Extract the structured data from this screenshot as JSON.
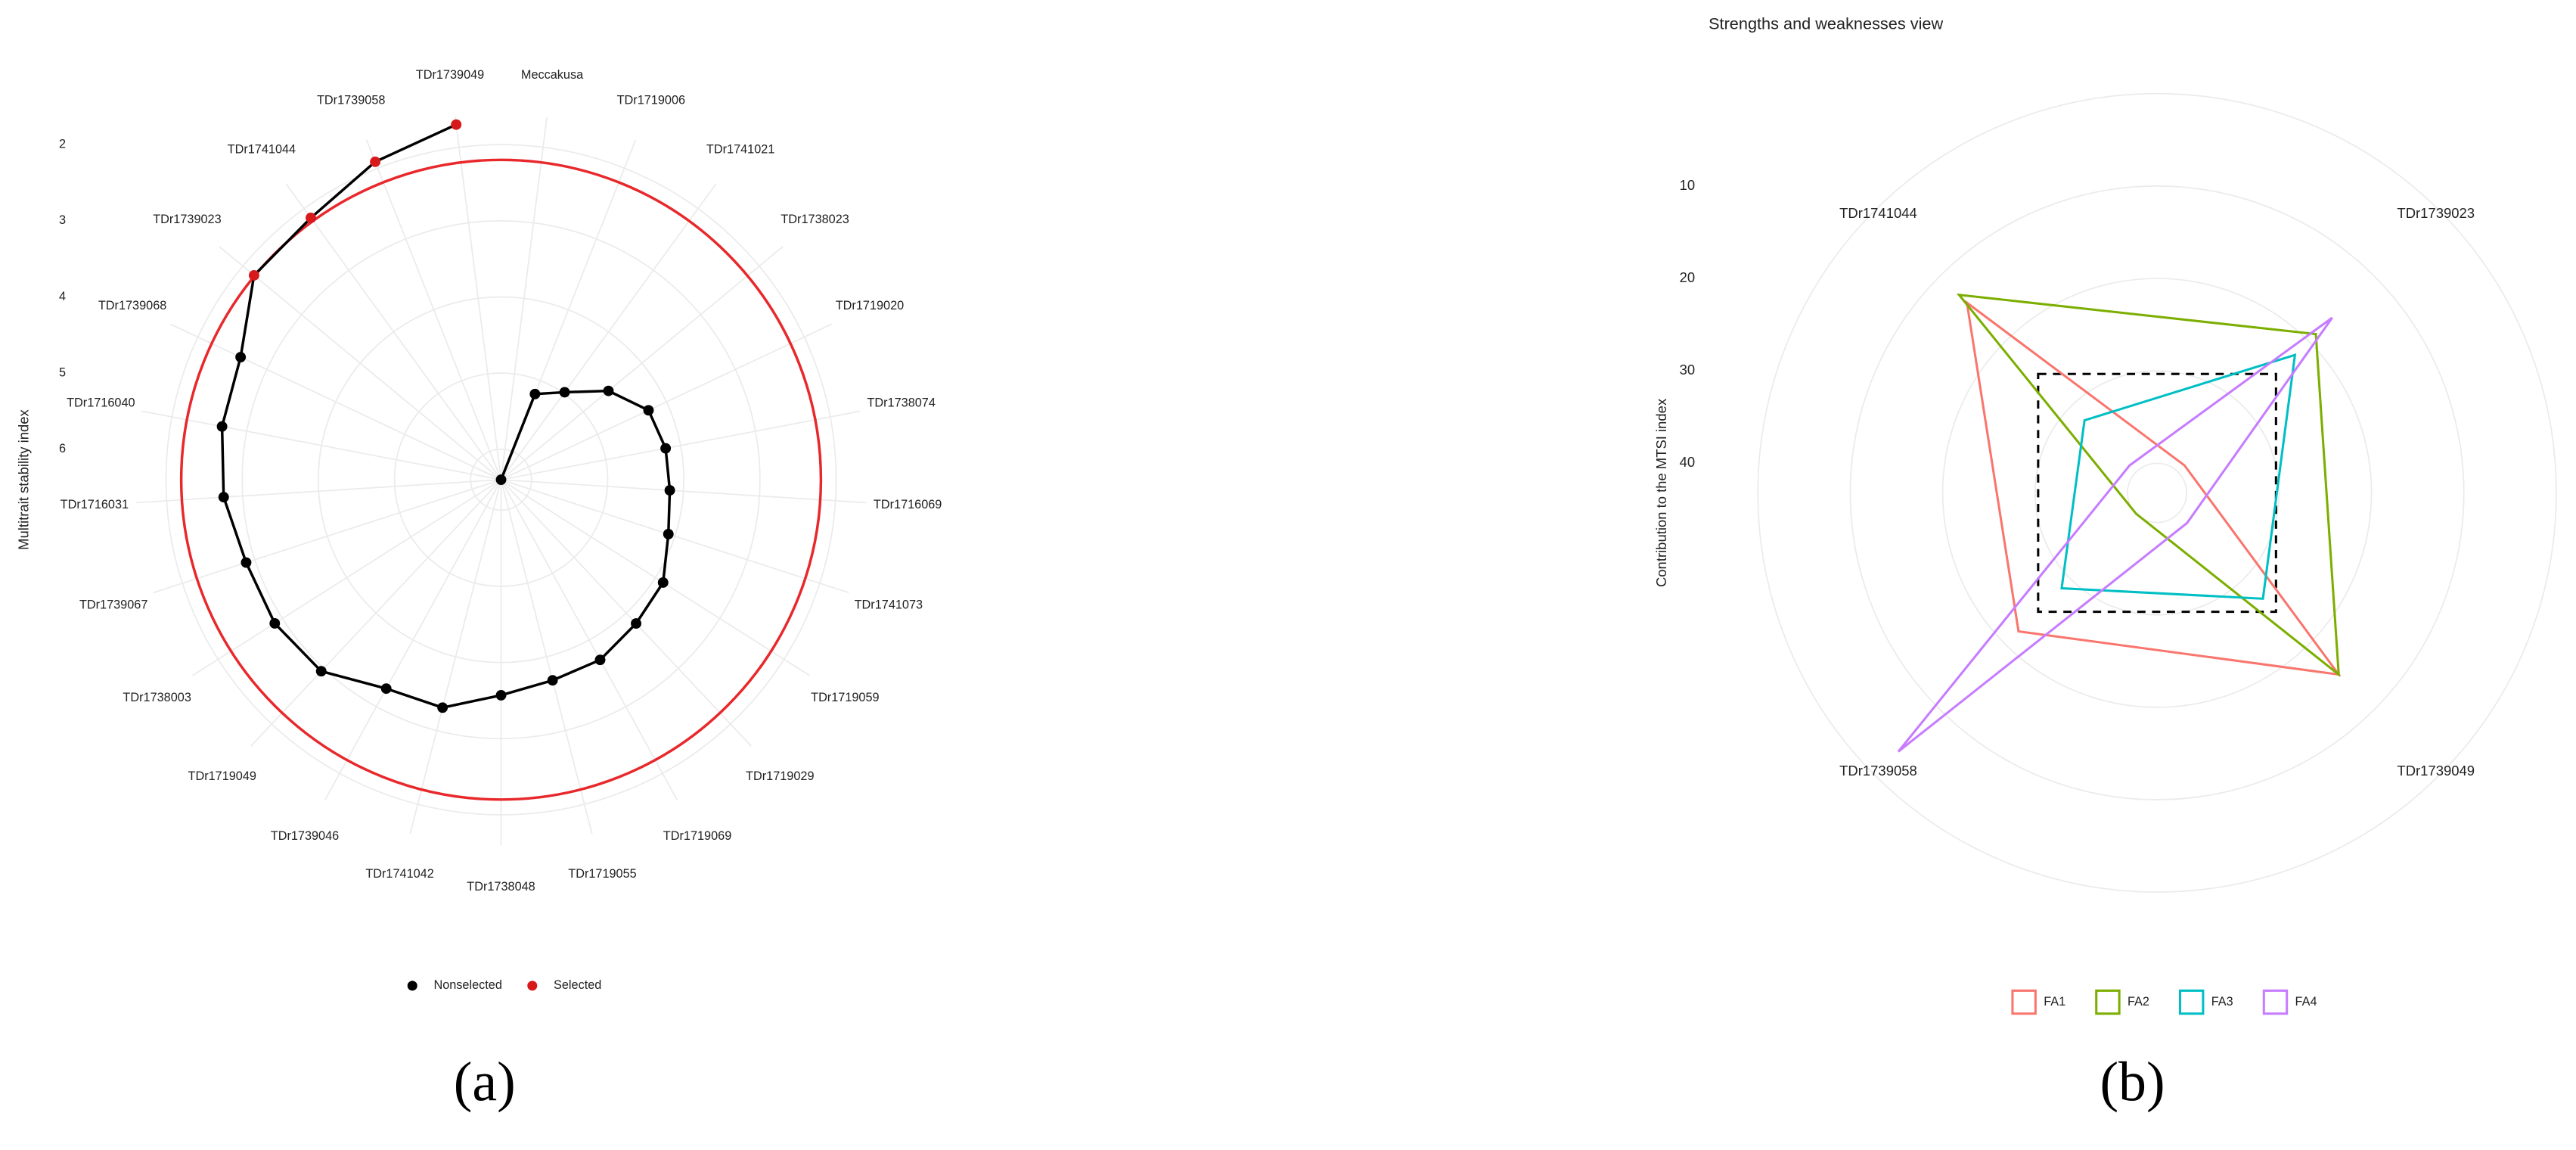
{
  "chart_data": [
    {
      "type": "polar_line",
      "categories": [
        "Meccakusa",
        "TDr1719006",
        "TDr1741021",
        "TDr1738023",
        "TDr1719020",
        "TDr1738074",
        "TDr1716069",
        "TDr1741073",
        "TDr1719059",
        "TDr1719029",
        "TDr1719069",
        "TDr1719055",
        "TDr1738048",
        "TDr1741042",
        "TDr1739046",
        "TDr1719049",
        "TDr1738003",
        "TDr1739067",
        "TDr1716031",
        "TDr1716040",
        "TDr1739068",
        "TDr1739023",
        "TDr1741044",
        "TDr1739058",
        "TDr1739049"
      ],
      "values": [
        6.4,
        5.19,
        4.98,
        4.57,
        4.26,
        4.2,
        4.18,
        4.09,
        3.88,
        3.81,
        3.7,
        3.68,
        3.57,
        3.31,
        3.27,
        2.95,
        2.88,
        2.88,
        2.75,
        2.67,
        2.62,
        2.19,
        2.15,
        1.91,
        1.7
      ],
      "selected": [
        false,
        false,
        false,
        false,
        false,
        false,
        false,
        false,
        false,
        false,
        false,
        false,
        false,
        false,
        false,
        false,
        false,
        false,
        false,
        false,
        false,
        true,
        true,
        true,
        true
      ],
      "legend": [
        {
          "name": "Nonselected",
          "color": "#000000"
        },
        {
          "name": "Selected",
          "color": "#d7191c"
        }
      ],
      "ylabel": "Multitrait stability index",
      "ylim": [
        6.4,
        1.6
      ],
      "yticks": [
        2,
        3,
        4,
        5,
        6
      ],
      "threshold": 2.2,
      "threshold_color": "#e8282b",
      "caption": "(a)"
    },
    {
      "type": "radar",
      "title": "Strengths and weaknesses view",
      "categories": [
        "TDr1741044",
        "TDr1739023",
        "TDr1739049",
        "TDr1739058"
      ],
      "series": [
        {
          "name": "FA1",
          "color": "#F8766D",
          "values": [
            14.1,
            39,
            15.4,
            22
          ]
        },
        {
          "name": "FA2",
          "color": "#7CAE00",
          "values": [
            12.9,
            18.9,
            15.4,
            40
          ]
        },
        {
          "name": "FA3",
          "color": "#00BFC4",
          "values": [
            32.1,
            22.1,
            27,
            28.6
          ]
        },
        {
          "name": "FA4",
          "color": "#C77CFF",
          "values": [
            39,
            16.4,
            38.6,
            3.6
          ]
        }
      ],
      "ylabel": "Contribution to the MTSI index",
      "ylim": [
        43.2,
        0
      ],
      "yticks": [
        10,
        20,
        30,
        40
      ],
      "reference": 25,
      "caption": "(b)"
    }
  ]
}
